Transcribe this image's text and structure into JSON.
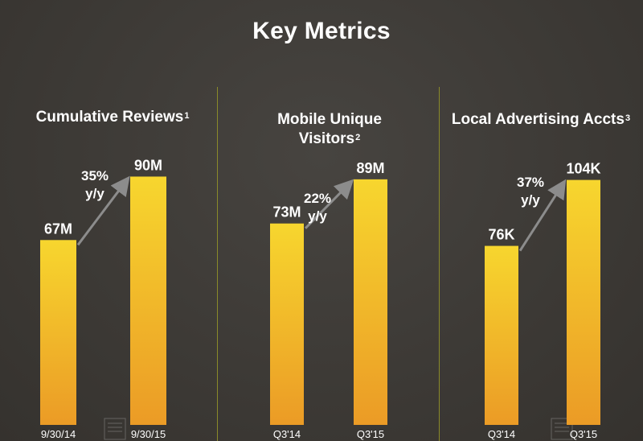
{
  "slide": {
    "title": "Key Metrics"
  },
  "colors": {
    "background": "#3d3a36",
    "bar_top": "#f7d62e",
    "bar_bottom": "#eb9b26",
    "divider": "#8a8a2a",
    "arrow": "#8c8c8c",
    "text": "#ffffff"
  },
  "chart_data": [
    {
      "type": "bar",
      "title": "Cumulative Reviews",
      "title_superscript": "1",
      "categories": [
        "9/30/14",
        "9/30/15"
      ],
      "values": [
        67,
        90
      ],
      "value_labels": [
        "67M",
        "90M"
      ],
      "unit": "M",
      "growth_label": [
        "35%",
        "y/y"
      ],
      "ylim": [
        0,
        105
      ]
    },
    {
      "type": "bar",
      "title": [
        "Mobile Unique",
        "Visitors"
      ],
      "title_superscript": "2",
      "categories": [
        "Q3'14",
        "Q3'15"
      ],
      "values": [
        73,
        89
      ],
      "value_labels": [
        "73M",
        "89M"
      ],
      "unit": "M",
      "growth_label": [
        "22%",
        "y/y"
      ],
      "ylim": [
        0,
        105
      ]
    },
    {
      "type": "bar",
      "title": "Local Advertising Accts",
      "title_superscript": "3",
      "categories": [
        "Q3'14",
        "Q3'15"
      ],
      "values": [
        76,
        104
      ],
      "value_labels": [
        "76K",
        "104K"
      ],
      "unit": "K",
      "growth_label": [
        "37%",
        "y/y"
      ],
      "ylim": [
        0,
        123
      ]
    }
  ]
}
